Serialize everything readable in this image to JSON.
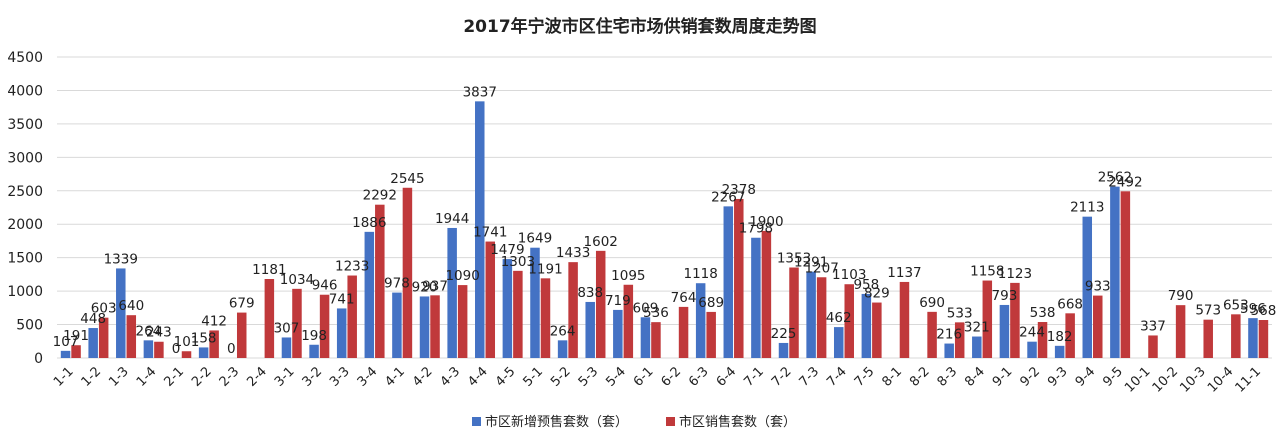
{
  "chart_data": {
    "type": "bar",
    "title": "2017年宁波市区住宅市场供销套数周度走势图",
    "xlabel": "",
    "ylabel": "",
    "ylim": [
      0,
      4500
    ],
    "yticks": [
      0,
      500,
      1000,
      1500,
      2000,
      2500,
      3000,
      3500,
      4000,
      4500
    ],
    "grid": true,
    "legend_position": "bottom-center",
    "categories": [
      "1-1",
      "1-2",
      "1-3",
      "1-4",
      "2-1",
      "2-2",
      "2-3",
      "2-4",
      "3-1",
      "3-2",
      "3-3",
      "3-4",
      "4-1",
      "4-2",
      "4-3",
      "4-4",
      "4-5",
      "5-1",
      "5-2",
      "5-3",
      "5-4",
      "6-1",
      "6-2",
      "6-3",
      "6-4",
      "7-1",
      "7-2",
      "7-3",
      "7-4",
      "7-5",
      "8-1",
      "8-2",
      "8-3",
      "8-4",
      "9-1",
      "9-2",
      "9-3",
      "9-4",
      "9-5",
      "10-1",
      "10-2",
      "10-3",
      "10-4",
      "11-1"
    ],
    "series": [
      {
        "name": "市区新增预售套数（套）",
        "color": "#4472c4",
        "values": [
          107,
          448,
          1339,
          264,
          0,
          158,
          0,
          null,
          307,
          198,
          741,
          1886,
          978,
          920,
          1944,
          3837,
          1479,
          1649,
          264,
          838,
          719,
          609,
          null,
          1118,
          2267,
          1798,
          225,
          1291,
          462,
          958,
          null,
          null,
          216,
          321,
          793,
          244,
          182,
          2113,
          2562,
          null,
          null,
          null,
          null,
          596
        ],
        "labels": [
          "107",
          "448",
          "1339",
          "264",
          "0",
          "158",
          "0",
          "",
          "307",
          "198",
          "741",
          "1886",
          "978",
          "920",
          "1944",
          "3837",
          "1479",
          "1649",
          "264",
          "838",
          "719",
          "609",
          "",
          "1118",
          "2267",
          "1798",
          "225",
          "1291",
          "462",
          "958",
          "",
          "",
          "216",
          "321",
          "793",
          "244",
          "182",
          "2113",
          "2562",
          "",
          "",
          "",
          "",
          "596"
        ]
      },
      {
        "name": "市区销售套数（套）",
        "color": "#c0393b",
        "values": [
          191,
          603,
          640,
          243,
          101,
          412,
          679,
          1181,
          1034,
          946,
          1233,
          2292,
          2545,
          937,
          1090,
          1741,
          1303,
          1191,
          1433,
          1602,
          1095,
          536,
          764,
          689,
          2378,
          1900,
          1353,
          1207,
          1103,
          829,
          1137,
          690,
          533,
          1158,
          1123,
          538,
          668,
          933,
          2492,
          337,
          790,
          573,
          653,
          568
        ],
        "labels": [
          "191",
          "603",
          "640",
          "243",
          "101",
          "412",
          "679",
          "1181",
          "1034",
          "946",
          "1233",
          "2292",
          "2545",
          "937",
          "1090",
          "1741",
          "1303",
          "1191",
          "1433",
          "1602",
          "1095",
          "536",
          "764",
          "689",
          "2378",
          "1900",
          "1353",
          "1207",
          "1103",
          "829",
          "1137",
          "690",
          "533",
          "1158",
          "1123",
          "538",
          "668",
          "933",
          "2492",
          "337",
          "790",
          "573",
          "653",
          "568"
        ]
      }
    ]
  }
}
